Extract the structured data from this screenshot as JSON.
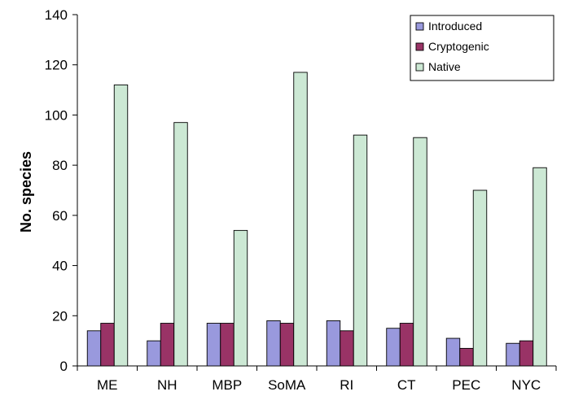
{
  "chart_data": {
    "type": "bar",
    "title": "",
    "xlabel": "",
    "ylabel": "No. species",
    "ylim": [
      0,
      140
    ],
    "yticks": [
      0,
      20,
      40,
      60,
      80,
      100,
      120,
      140
    ],
    "grid": false,
    "legend_position": "top-right",
    "categories": [
      "ME",
      "NH",
      "MBP",
      "SoMA",
      "RI",
      "CT",
      "PEC",
      "NYC"
    ],
    "series": [
      {
        "name": "Introduced",
        "color": "#9999dd",
        "values": [
          14,
          10,
          17,
          18,
          18,
          15,
          11,
          9
        ]
      },
      {
        "name": "Cryptogenic",
        "color": "#993366",
        "values": [
          17,
          17,
          17,
          17,
          14,
          17,
          7,
          10
        ]
      },
      {
        "name": "Native",
        "color": "#cce8d4",
        "values": [
          112,
          97,
          54,
          117,
          92,
          91,
          70,
          79
        ]
      }
    ]
  }
}
